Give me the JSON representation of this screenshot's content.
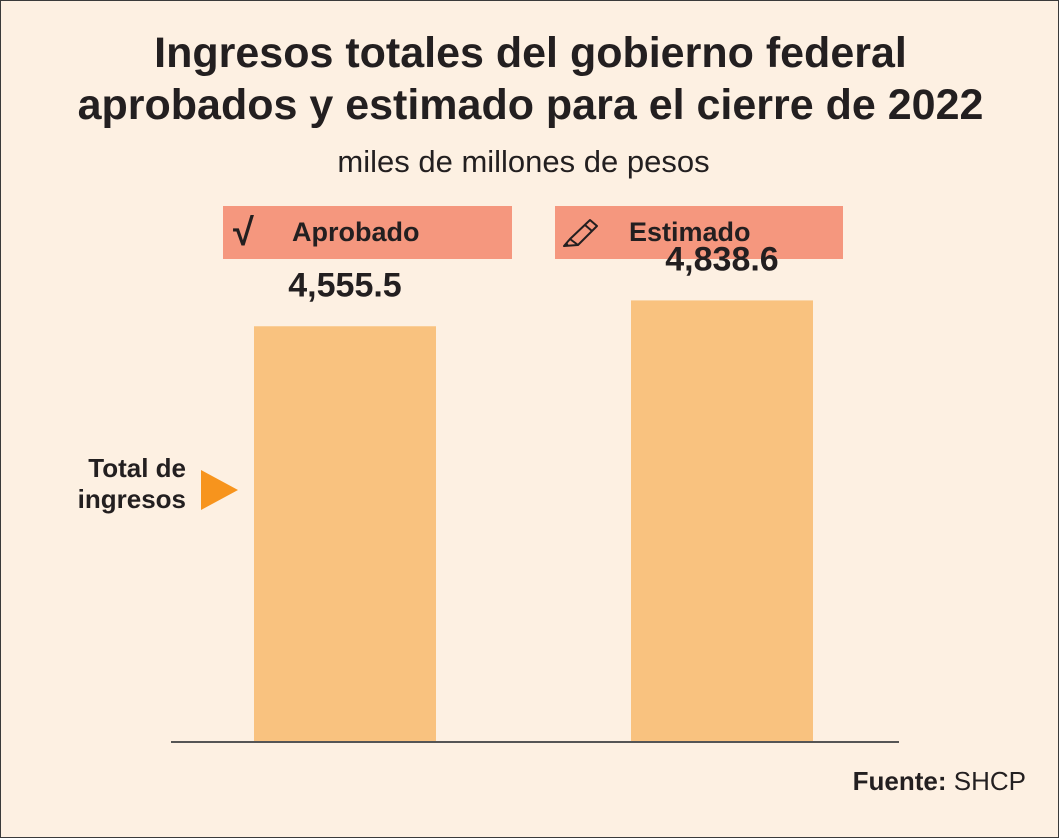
{
  "title_line1": "Ingresos totales del gobierno federal",
  "title_line2": "aprobados y estimado para el cierre de 2022",
  "subtitle": "miles de millones de pesos",
  "legend": [
    {
      "label": "Aprobado",
      "icon": "checkmark-icon",
      "icon_glyph": "√"
    },
    {
      "label": "Estimado",
      "icon": "pen-icon"
    }
  ],
  "category_label_line1": "Total de",
  "category_label_line2": "ingresos",
  "source_label": "Fuente:",
  "source_value": "SHCP",
  "colors": {
    "background": "#fdf0e2",
    "legend_box": "#f5977e",
    "bar": "#f9c27f",
    "arrow": "#f7941d",
    "text": "#231f20"
  },
  "chart_data": {
    "type": "bar",
    "categories": [
      "Aprobado",
      "Estimado"
    ],
    "series": [
      {
        "name": "Total de ingresos",
        "values": [
          4555.5,
          4838.6
        ]
      }
    ],
    "data_labels": [
      "4,555.5",
      "4,838.6"
    ],
    "title": "Ingresos totales del gobierno federal aprobados y estimado para el cierre de 2022",
    "ylabel": "miles de millones de pesos",
    "ylim": [
      0,
      5150
    ],
    "grid": false,
    "legend": "top"
  }
}
